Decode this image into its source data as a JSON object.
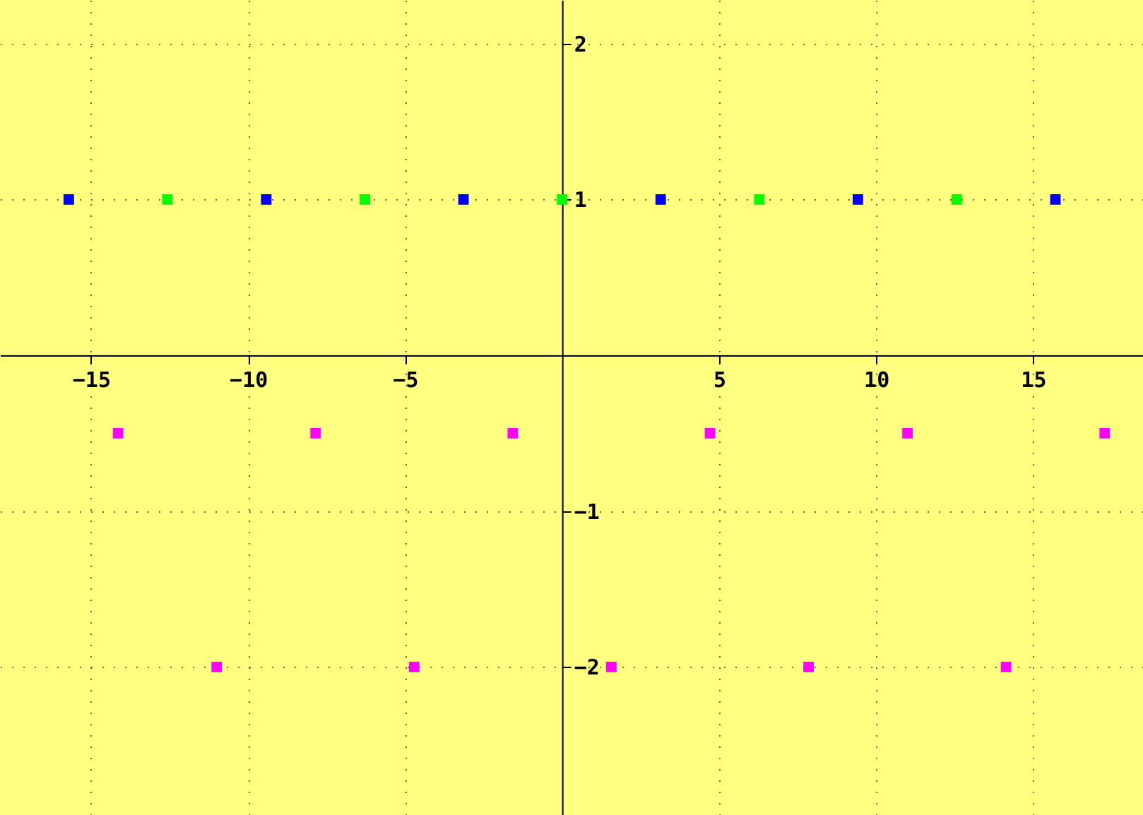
{
  "chart_data": {
    "type": "scatter",
    "marker": "square",
    "grid": true,
    "xlim": [
      -17.9,
      18.5
    ],
    "ylim": [
      -2.95,
      2.28
    ],
    "xticks": [
      -15,
      -10,
      -5,
      5,
      10,
      15
    ],
    "yticks": [
      -2,
      -1,
      1,
      2
    ],
    "series": [
      {
        "color": "#0000ff",
        "x": [
          -15.71,
          -9.42,
          -3.14,
          3.14,
          9.42,
          15.71
        ],
        "values": [
          1,
          1,
          1,
          1,
          1,
          1
        ]
      },
      {
        "color": "#00ff00",
        "x": [
          -12.57,
          -6.28,
          0,
          6.28,
          12.57
        ],
        "values": [
          1,
          1,
          1,
          1,
          1
        ]
      },
      {
        "color": "#ff00ff",
        "x": [
          -14.14,
          -7.85,
          -1.57,
          4.71,
          11.0,
          17.28,
          -11.0,
          -4.71,
          1.57,
          7.85,
          14.14
        ],
        "values": [
          -0.5,
          -0.5,
          -0.5,
          -0.5,
          -0.5,
          -0.5,
          -2,
          -2,
          -2,
          -2,
          -2
        ]
      }
    ]
  }
}
